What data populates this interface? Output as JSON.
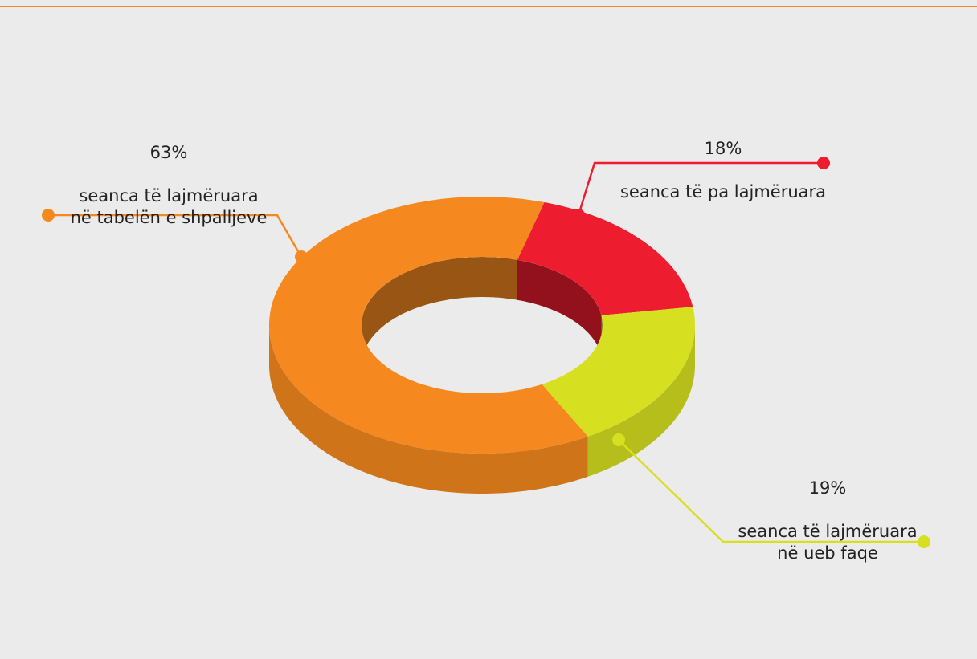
{
  "chart_data": {
    "type": "donut",
    "categories": [
      "seanca të lajmëruara\nnë tabelën e shpalljeve",
      "seanca të pa lajmëruara",
      "seanca të lajmëruara\nnë ueb faqe"
    ],
    "values": [
      63,
      18,
      19
    ],
    "value_labels": [
      "63%",
      "18%",
      "19%"
    ],
    "colors": [
      "#f5891f",
      "#ed1c2e",
      "#d6e021"
    ]
  }
}
